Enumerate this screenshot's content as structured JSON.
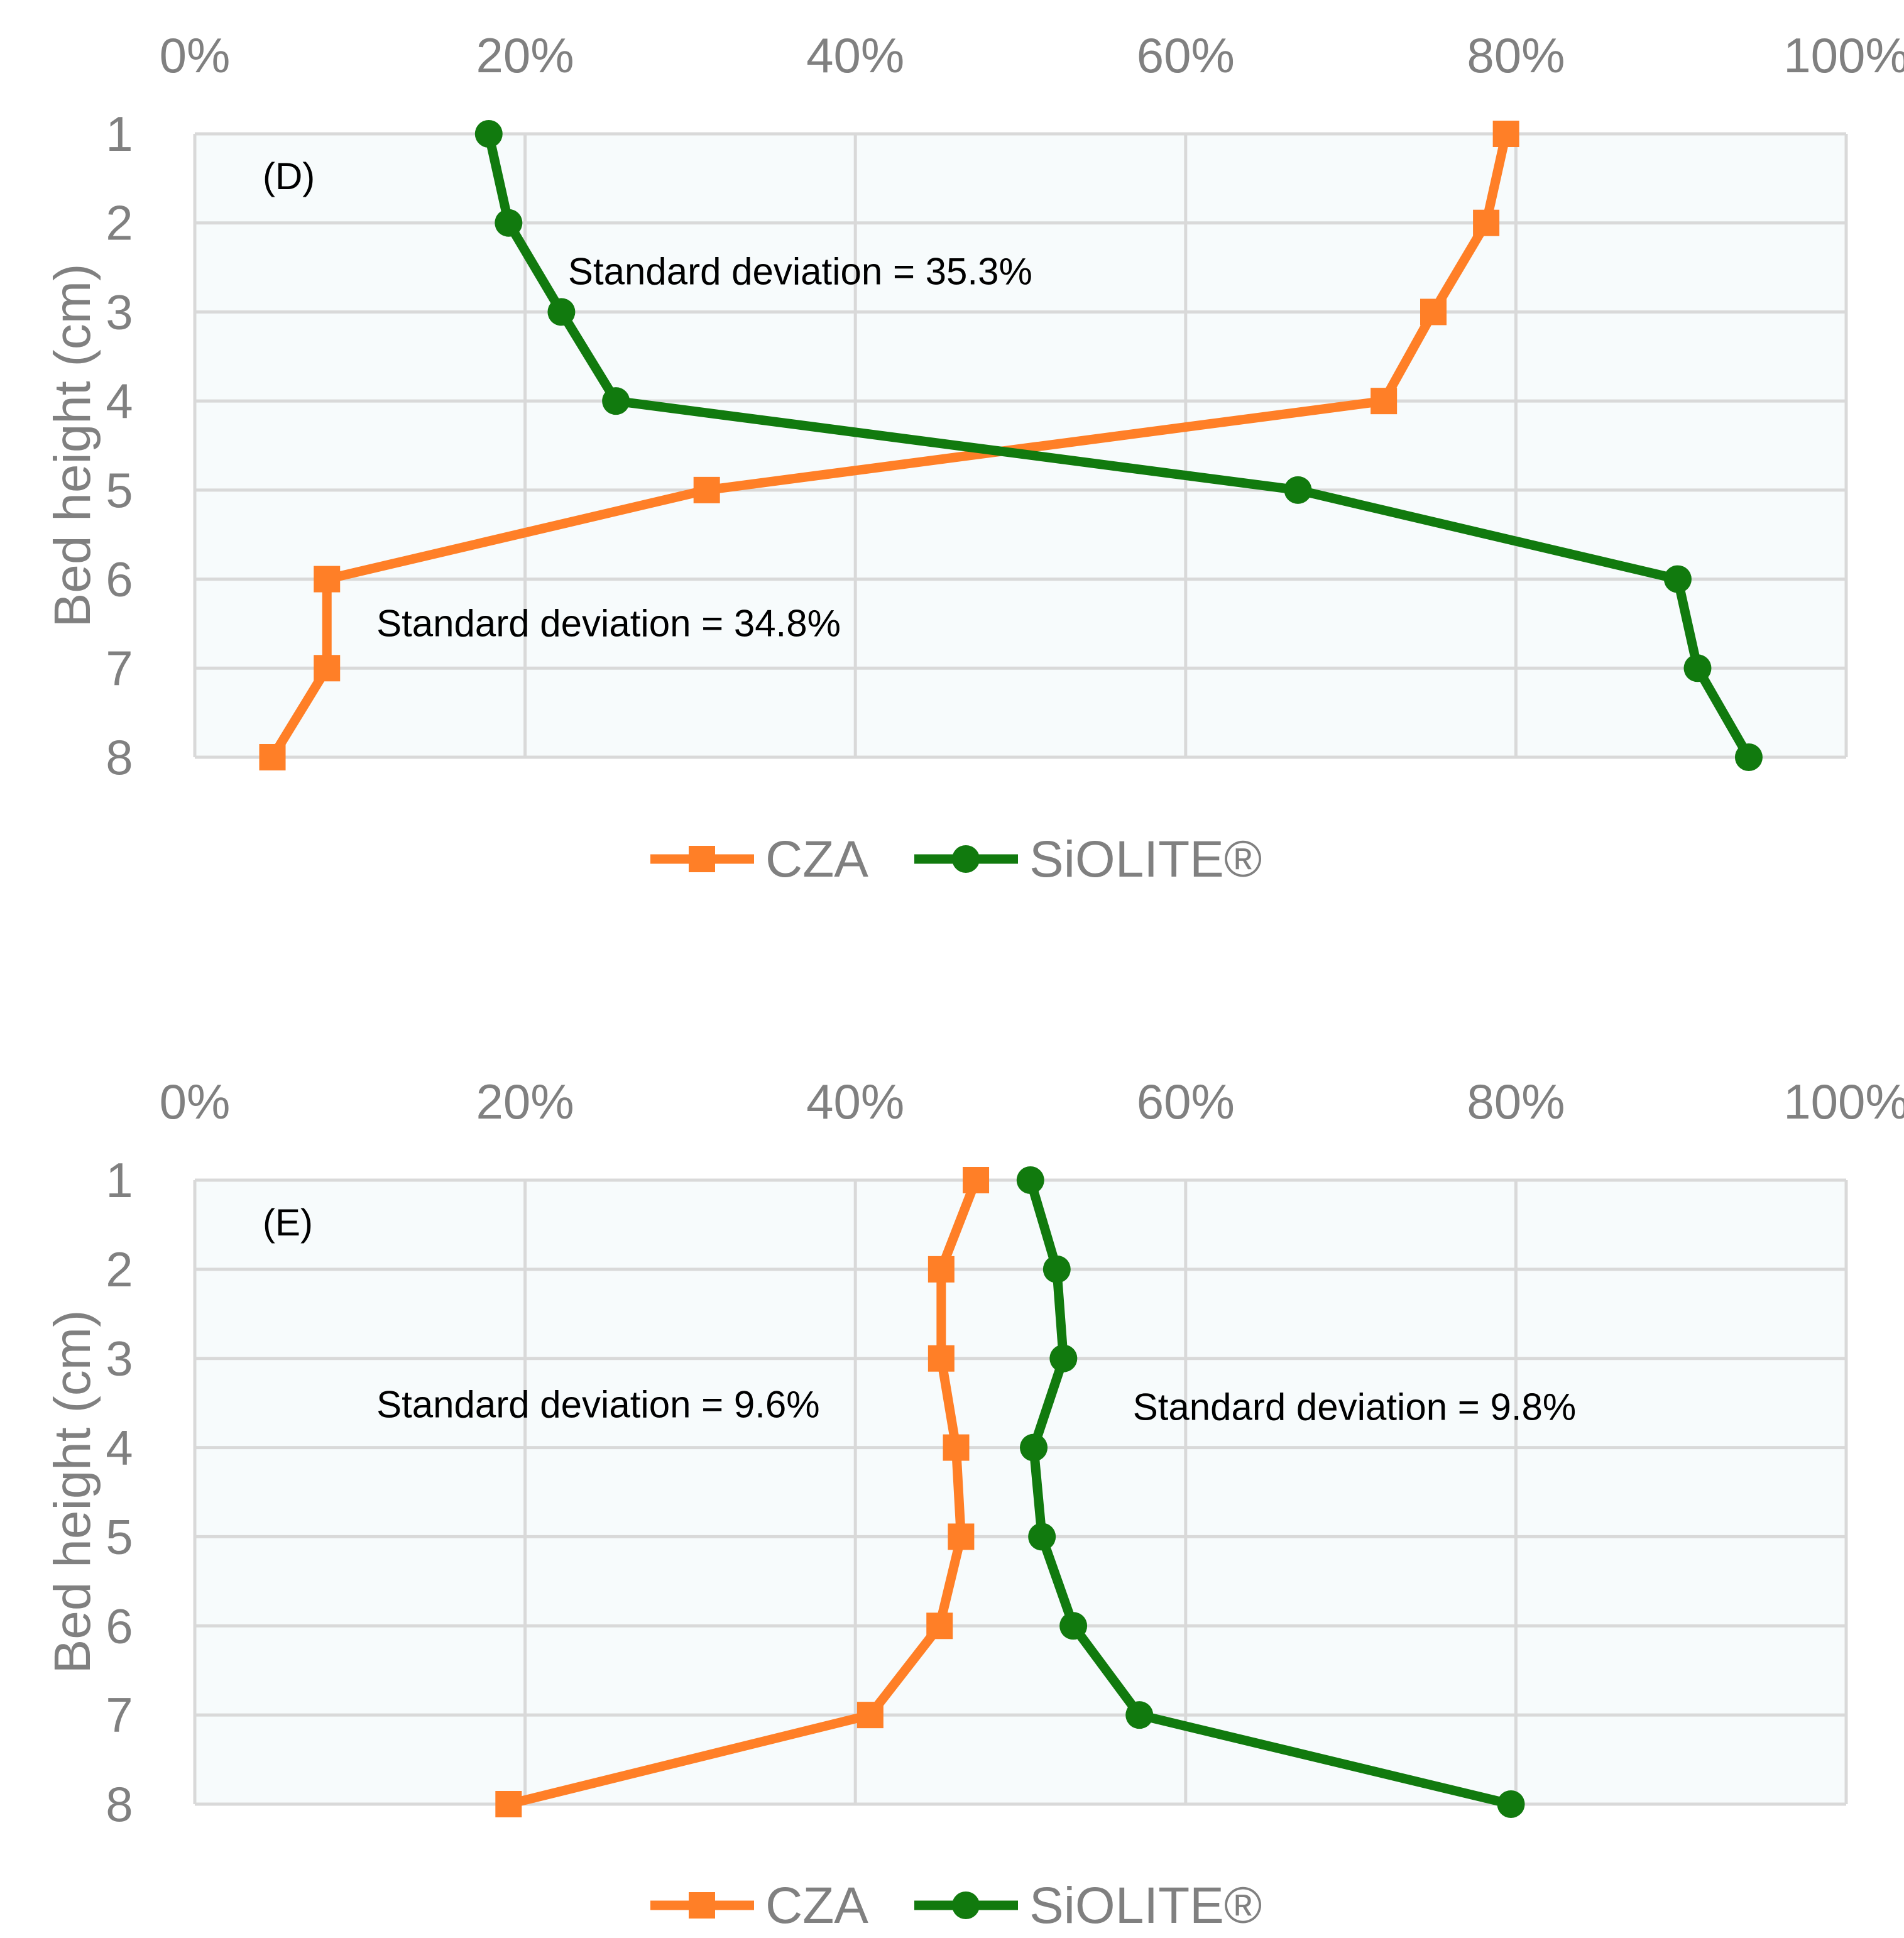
{
  "colors": {
    "czaColor": "#FF7F27",
    "siliteColor": "#117A0E",
    "gridColor": "#D9D9D9",
    "plotBg": "#F7FBFC",
    "tickColor": "#808080"
  },
  "chart_data": [
    {
      "type": "line",
      "panel_label": "(D)",
      "x_ticks": [
        "0%",
        "20%",
        "40%",
        "60%",
        "80%",
        "100%"
      ],
      "xlim": [
        0,
        100
      ],
      "y_categories": [
        "1",
        "2",
        "3",
        "4",
        "5",
        "6",
        "7",
        "8"
      ],
      "ylabel": "Bed height (cm)",
      "xlabel": "",
      "series": [
        {
          "name": "CZA",
          "marker": "square",
          "values": [
            79.4,
            78.2,
            75.0,
            72.0,
            31.0,
            8.0,
            8.0,
            4.7
          ]
        },
        {
          "name": "SiOLITE®",
          "marker": "circle",
          "values": [
            17.8,
            19.0,
            22.2,
            25.5,
            66.8,
            89.8,
            91.0,
            94.1
          ]
        }
      ],
      "annotations": [
        {
          "text": "Standard deviation = 35.3%",
          "x_value": 22.6,
          "y_value": 2.55
        },
        {
          "text": "Standard deviation = 34.8%",
          "x_value": 11.0,
          "y_value": 6.5
        }
      ],
      "legend": [
        "CZA",
        "SiOLITE®"
      ],
      "legend_position": "bottom",
      "grid": true
    },
    {
      "type": "line",
      "panel_label": "(E)",
      "x_ticks": [
        "0%",
        "20%",
        "40%",
        "60%",
        "80%",
        "100%"
      ],
      "xlim": [
        0,
        100
      ],
      "y_categories": [
        "1",
        "2",
        "3",
        "4",
        "5",
        "6",
        "7",
        "8"
      ],
      "ylabel": "Bed height (cm)",
      "xlabel": "",
      "series": [
        {
          "name": "CZA",
          "marker": "square",
          "values": [
            47.3,
            45.2,
            45.2,
            46.1,
            46.4,
            45.1,
            40.9,
            19.0
          ]
        },
        {
          "name": "SiOLITE®",
          "marker": "circle",
          "values": [
            50.6,
            52.2,
            52.6,
            50.8,
            51.3,
            53.2,
            57.2,
            79.7
          ]
        }
      ],
      "annotations": [
        {
          "text": "Standard deviation = 9.6%",
          "x_value": 11.0,
          "y_value": 3.52
        },
        {
          "text": "Standard deviation = 9.8%",
          "x_value": 56.8,
          "y_value": 3.55
        }
      ],
      "legend": [
        "CZA",
        "SiOLITE®"
      ],
      "legend_position": "bottom",
      "grid": true
    }
  ]
}
